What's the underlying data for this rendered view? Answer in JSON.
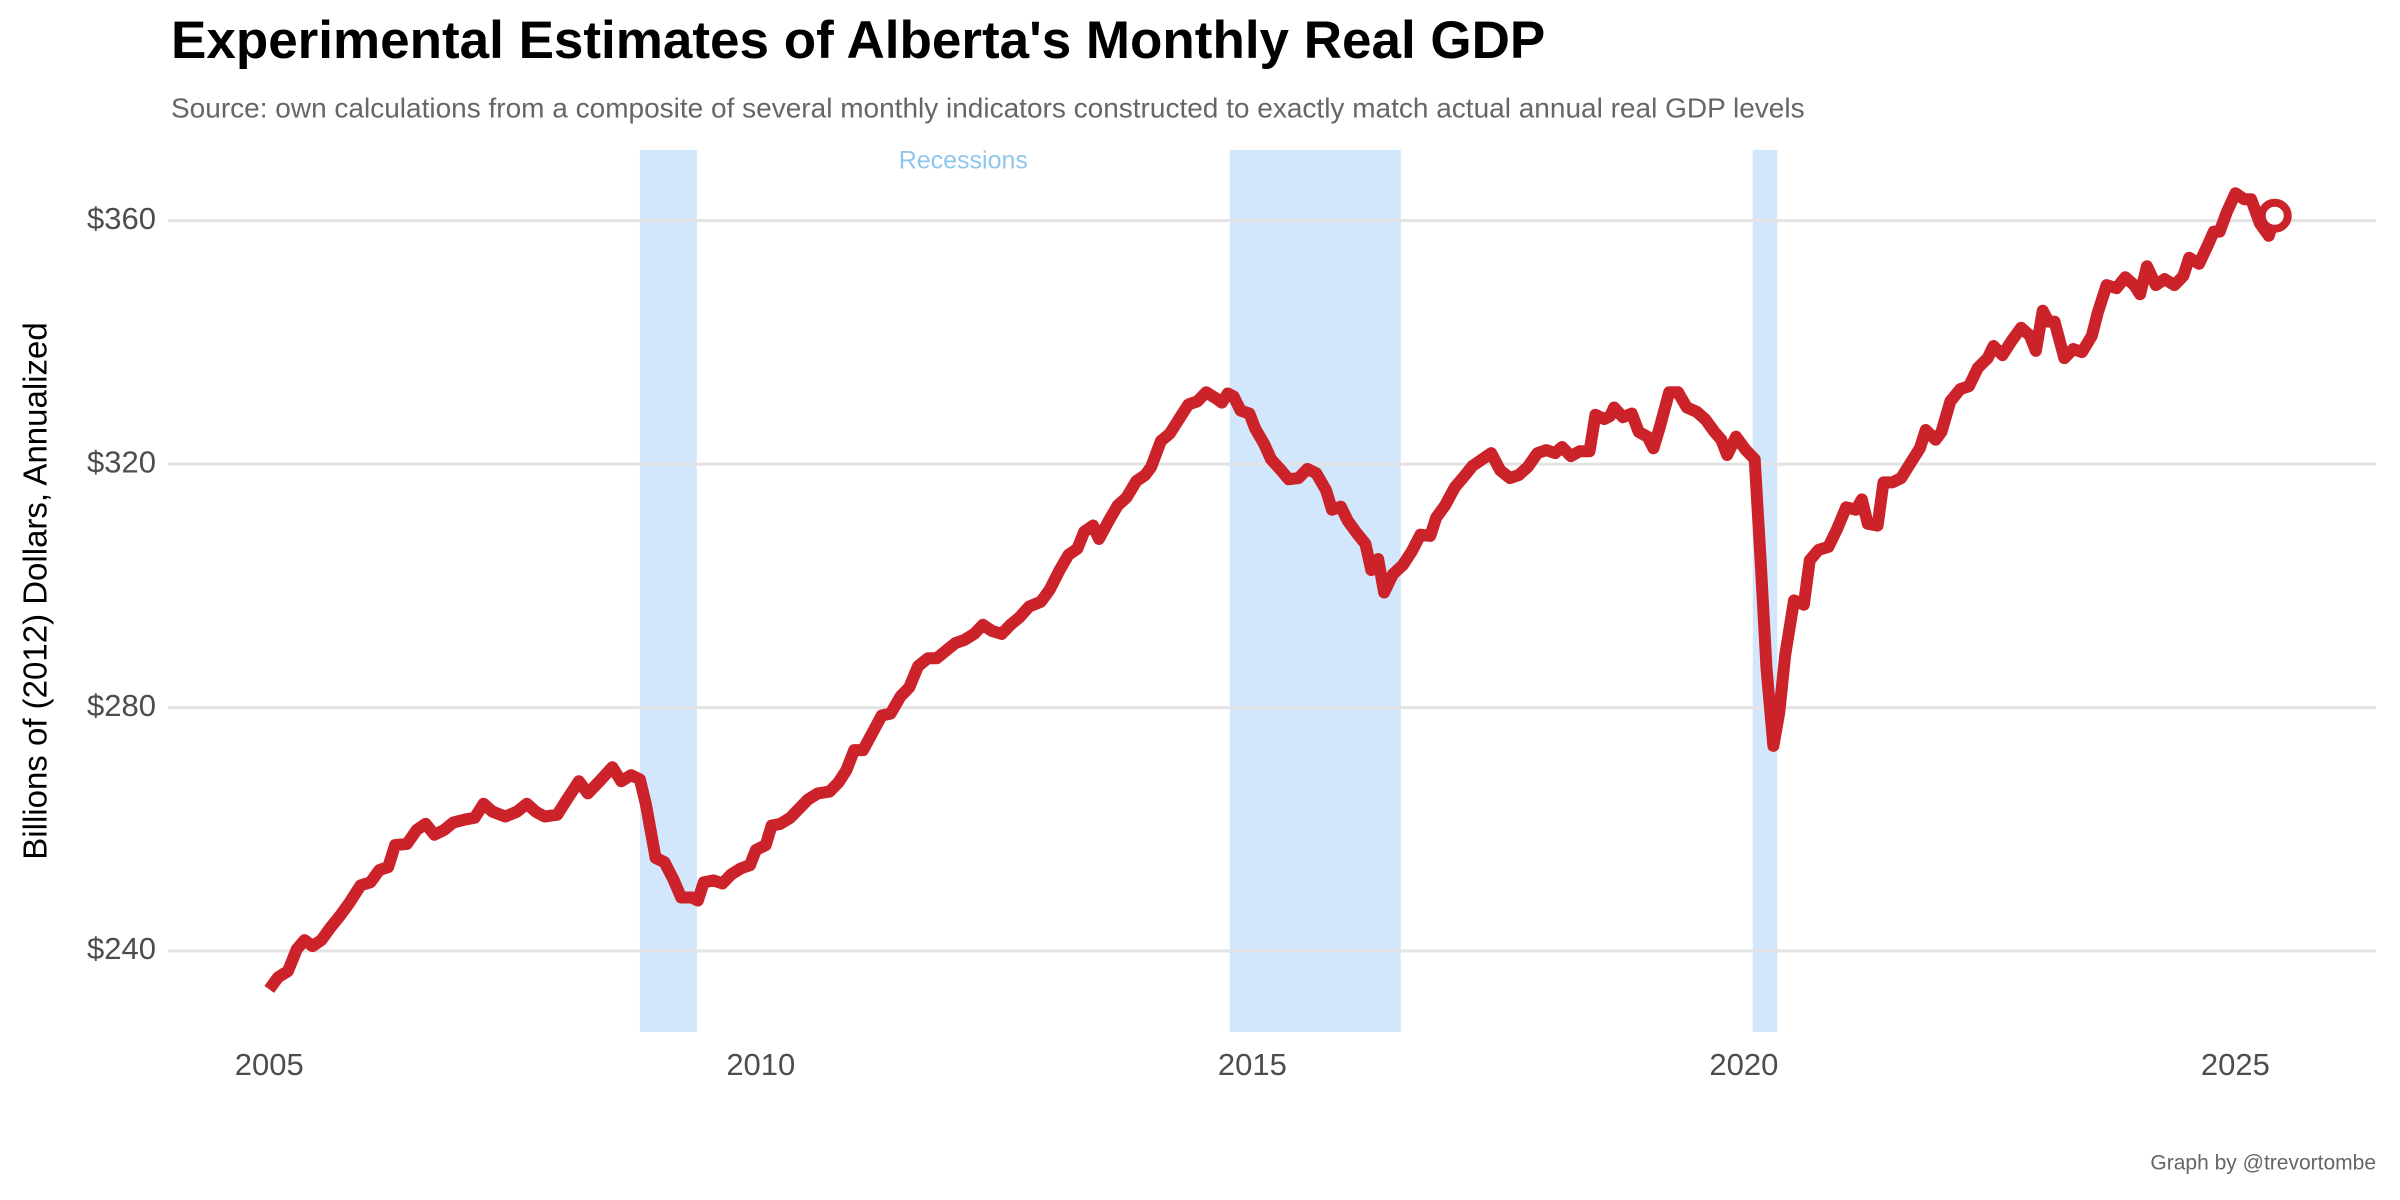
{
  "chart_data": {
    "type": "line",
    "title": "Experimental Estimates of Alberta's Monthly Real GDP",
    "subtitle": "Source: own calculations from a composite of several monthly indicators constructed to exactly match actual annual real GDP levels",
    "y_label": "Billions of (2012) Dollars, Annualized",
    "caption": "Graph by @trevortombe",
    "recession_label": "Recessions",
    "recessions": [
      [
        2008.77,
        2009.35
      ],
      [
        2014.77,
        2016.51
      ],
      [
        2020.09,
        2020.34
      ]
    ],
    "recession_color": "#d3e7fc",
    "xlim": [
      2003.97,
      2026.43
    ],
    "ylim": [
      226.7,
      371.6
    ],
    "xticks": [
      2005,
      2010,
      2015,
      2020,
      2025
    ],
    "yticks": [
      {
        "value": 240,
        "label": "$240"
      },
      {
        "value": 280,
        "label": "$280"
      },
      {
        "value": 320,
        "label": "$320"
      },
      {
        "value": 360,
        "label": "$360"
      }
    ],
    "grid": true,
    "end_marker": true,
    "x": [
      2005.0,
      2005.09,
      2005.19,
      2005.28,
      2005.36,
      2005.44,
      2005.53,
      2005.62,
      2005.72,
      2005.81,
      2005.93,
      2006.03,
      2006.12,
      2006.21,
      2006.28,
      2006.4,
      2006.5,
      2006.59,
      2006.68,
      2006.78,
      2006.87,
      2006.99,
      2007.09,
      2007.18,
      2007.27,
      2007.4,
      2007.52,
      2007.62,
      2007.71,
      2007.8,
      2007.93,
      2008.02,
      2008.15,
      2008.24,
      2008.36,
      2008.49,
      2008.58,
      2008.68,
      2008.77,
      2008.83,
      2008.93,
      2009.02,
      2009.11,
      2009.19,
      2009.3,
      2009.36,
      2009.42,
      2009.52,
      2009.61,
      2009.7,
      2009.8,
      2009.89,
      2009.95,
      2010.05,
      2010.11,
      2010.2,
      2010.3,
      2010.39,
      2010.48,
      2010.58,
      2010.7,
      2010.79,
      2010.87,
      2010.95,
      2011.04,
      2011.14,
      2011.23,
      2011.32,
      2011.42,
      2011.51,
      2011.6,
      2011.7,
      2011.79,
      2011.88,
      2011.98,
      2012.07,
      2012.17,
      2012.26,
      2012.35,
      2012.45,
      2012.54,
      2012.63,
      2012.73,
      2012.85,
      2012.94,
      2013.04,
      2013.13,
      2013.22,
      2013.29,
      2013.38,
      2013.44,
      2013.54,
      2013.63,
      2013.72,
      2013.82,
      2013.91,
      2013.97,
      2014.07,
      2014.16,
      2014.25,
      2014.35,
      2014.44,
      2014.53,
      2014.63,
      2014.69,
      2014.75,
      2014.81,
      2014.88,
      2014.97,
      2015.03,
      2015.12,
      2015.19,
      2015.28,
      2015.37,
      2015.47,
      2015.56,
      2015.65,
      2015.75,
      2015.81,
      2015.9,
      2015.97,
      2016.06,
      2016.15,
      2016.21,
      2016.28,
      2016.34,
      2016.43,
      2016.53,
      2016.62,
      2016.71,
      2016.81,
      2016.87,
      2016.96,
      2017.06,
      2017.15,
      2017.24,
      2017.34,
      2017.43,
      2017.52,
      2017.62,
      2017.71,
      2017.8,
      2017.9,
      2017.99,
      2018.08,
      2018.15,
      2018.24,
      2018.33,
      2018.43,
      2018.49,
      2018.58,
      2018.64,
      2018.68,
      2018.77,
      2018.86,
      2018.93,
      2019.02,
      2019.08,
      2019.14,
      2019.24,
      2019.33,
      2019.42,
      2019.52,
      2019.61,
      2019.7,
      2019.77,
      2019.83,
      2019.92,
      2020.02,
      2020.11,
      2020.17,
      2020.23,
      2020.3,
      2020.36,
      2020.42,
      2020.51,
      2020.61,
      2020.67,
      2020.76,
      2020.86,
      2020.95,
      2021.04,
      2021.14,
      2021.2,
      2021.26,
      2021.36,
      2021.42,
      2021.51,
      2021.6,
      2021.7,
      2021.79,
      2021.85,
      2021.95,
      2022.01,
      2022.1,
      2022.2,
      2022.29,
      2022.38,
      2022.48,
      2022.54,
      2022.63,
      2022.73,
      2022.82,
      2022.91,
      2022.97,
      2023.04,
      2023.1,
      2023.16,
      2023.26,
      2023.35,
      2023.44,
      2023.54,
      2023.6,
      2023.69,
      2023.79,
      2023.88,
      2023.97,
      2024.03,
      2024.1,
      2024.19,
      2024.28,
      2024.38,
      2024.47,
      2024.53,
      2024.63,
      2024.72,
      2024.78,
      2024.84,
      2024.91,
      2025.0,
      2025.09,
      2025.16,
      2025.25,
      2025.34,
      2025.4
    ],
    "series": [
      {
        "color": "#cc2229",
        "values": [
          233.7,
          235.7,
          236.7,
          240.3,
          241.8,
          240.8,
          241.8,
          243.8,
          245.8,
          247.8,
          250.8,
          251.3,
          253.3,
          253.8,
          257.4,
          257.6,
          259.9,
          260.9,
          259.1,
          259.9,
          261.1,
          261.6,
          261.9,
          264.2,
          262.9,
          262.1,
          262.9,
          264.2,
          262.9,
          262.1,
          262.4,
          264.7,
          267.9,
          265.9,
          267.9,
          270.2,
          267.9,
          268.9,
          268.2,
          264.2,
          255.3,
          254.6,
          251.8,
          248.8,
          248.8,
          248.3,
          251.3,
          251.6,
          251.1,
          252.6,
          253.6,
          254.1,
          256.6,
          257.4,
          260.6,
          260.9,
          261.9,
          263.4,
          264.9,
          265.9,
          266.2,
          267.7,
          269.7,
          273.0,
          273.0,
          276.0,
          278.7,
          279.0,
          281.8,
          283.3,
          286.8,
          288.1,
          288.1,
          289.3,
          290.6,
          291.1,
          292.1,
          293.6,
          292.6,
          292.1,
          293.6,
          294.8,
          296.6,
          297.4,
          299.4,
          302.6,
          305.1,
          306.1,
          308.9,
          309.9,
          307.7,
          310.7,
          313.2,
          314.5,
          317.2,
          318.2,
          319.5,
          323.8,
          325.0,
          327.3,
          329.8,
          330.3,
          331.8,
          330.8,
          330.1,
          331.6,
          331.1,
          328.8,
          328.3,
          325.8,
          323.3,
          320.8,
          319.2,
          317.5,
          317.7,
          319.2,
          318.5,
          315.7,
          312.5,
          313.0,
          310.7,
          308.7,
          306.9,
          302.6,
          304.4,
          298.9,
          301.9,
          303.4,
          305.6,
          308.4,
          308.2,
          311.2,
          313.2,
          316.2,
          317.9,
          319.7,
          320.8,
          321.8,
          319.0,
          317.7,
          318.2,
          319.5,
          321.8,
          322.3,
          321.8,
          322.8,
          321.3,
          322.1,
          322.1,
          328.1,
          327.4,
          327.9,
          329.3,
          327.7,
          328.3,
          325.3,
          324.5,
          322.6,
          325.8,
          331.8,
          331.8,
          329.3,
          328.6,
          327.3,
          325.3,
          324.0,
          321.5,
          324.5,
          322.3,
          320.8,
          304.2,
          286.5,
          273.7,
          279.2,
          288.6,
          297.6,
          296.9,
          304.2,
          305.9,
          306.4,
          309.4,
          312.9,
          312.5,
          314.2,
          310.2,
          309.9,
          317.0,
          317.0,
          317.7,
          320.3,
          322.6,
          325.6,
          324.0,
          325.3,
          330.3,
          332.3,
          332.8,
          335.8,
          337.4,
          339.4,
          337.9,
          340.4,
          342.4,
          341.1,
          338.6,
          345.2,
          343.4,
          343.4,
          337.4,
          338.9,
          338.4,
          341.1,
          344.9,
          349.4,
          348.9,
          350.7,
          349.4,
          347.9,
          352.5,
          349.4,
          350.4,
          349.4,
          350.9,
          353.9,
          352.9,
          356.0,
          358.2,
          358.2,
          361.3,
          364.5,
          363.5,
          363.5,
          359.5,
          357.5,
          360.8
        ]
      }
    ]
  }
}
